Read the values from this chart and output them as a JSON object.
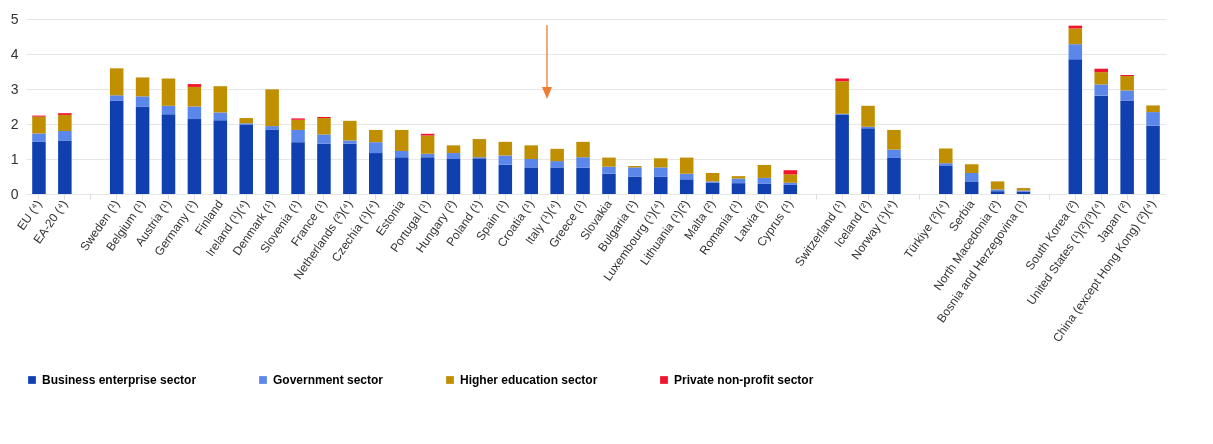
{
  "chart_data": {
    "type": "bar",
    "stacked": true,
    "legend": "bottom",
    "grid": "y",
    "ylim": [
      0,
      5
    ],
    "yticks": [
      0,
      1,
      2,
      3,
      4,
      5
    ],
    "categories": [
      "EU (⁴)",
      "EA-20 (⁴)",
      null,
      "Sweden (¹)",
      "Belgium (¹)",
      "Austria (¹)",
      "Germany (¹)",
      "Finland",
      "Ireland (¹)(⁴)",
      "Denmark (¹)",
      "Slovenia (¹)",
      "France (¹)",
      "Netherlands (²)(⁴)",
      "Czechia (¹)(⁴)",
      "Estonia",
      "Portugal (¹)",
      "Hungary (²)",
      "Poland (¹)",
      "Spain (¹)",
      "Croatia (¹)",
      "Italy (¹)(⁴)",
      "Greece (¹)",
      "Slovakia",
      "Bulgaria (¹)",
      "Luxembourg (¹)(⁴)",
      "Lithuania (¹)(²)",
      "Malta (²)",
      "Romania (¹)",
      "Latvia (²)",
      "Cyprus (¹)",
      null,
      "Switzerland (¹)",
      "Iceland (²)",
      "Norway (¹)(⁴)",
      null,
      "Türkiye (²)(⁴)",
      "Serbia",
      "North Macedonia (²)",
      "Bosnia and Herzegovina (¹)",
      null,
      "South Korea (²)",
      "United States (¹)(²)(³)(⁴)",
      "Japan (²)",
      "China (except Hong Kong) (²)(⁴)"
    ],
    "series": [
      {
        "name": "Business enterprise sector",
        "color": "#1040b0",
        "values": [
          1.49,
          1.53,
          null,
          2.67,
          2.5,
          2.28,
          2.14,
          2.11,
          1.97,
          1.84,
          1.48,
          1.44,
          1.44,
          1.17,
          1.05,
          1.05,
          1.0,
          1.02,
          0.84,
          0.76,
          0.76,
          0.75,
          0.58,
          0.5,
          0.49,
          0.42,
          0.32,
          0.31,
          0.29,
          0.26,
          null,
          2.26,
          1.88,
          1.03,
          null,
          0.8,
          0.36,
          0.08,
          0.07,
          null,
          3.85,
          2.81,
          2.67,
          1.95
        ]
      },
      {
        "name": "Government sector",
        "color": "#5b86ea",
        "values": [
          0.24,
          0.27,
          null,
          0.15,
          0.29,
          0.24,
          0.36,
          0.22,
          0.05,
          0.1,
          0.35,
          0.26,
          0.09,
          0.31,
          0.18,
          0.1,
          0.17,
          0.03,
          0.26,
          0.24,
          0.18,
          0.3,
          0.2,
          0.26,
          0.27,
          0.16,
          0.04,
          0.13,
          0.17,
          0.06,
          null,
          0.03,
          0.04,
          0.24,
          null,
          0.08,
          0.24,
          0.05,
          0.03,
          null,
          0.43,
          0.32,
          0.29,
          0.39
        ]
      },
      {
        "name": "Higher education sector",
        "color": "#bf8f00",
        "values": [
          0.48,
          0.46,
          null,
          0.77,
          0.54,
          0.78,
          0.56,
          0.75,
          0.15,
          1.05,
          0.29,
          0.47,
          0.56,
          0.35,
          0.6,
          0.52,
          0.22,
          0.52,
          0.39,
          0.39,
          0.35,
          0.44,
          0.26,
          0.04,
          0.26,
          0.46,
          0.24,
          0.07,
          0.37,
          0.24,
          null,
          0.93,
          0.6,
          0.56,
          null,
          0.42,
          0.25,
          0.23,
          0.07,
          null,
          0.45,
          0.35,
          0.41,
          0.19
        ]
      },
      {
        "name": "Private non-profit sector",
        "color": "#f0142d",
        "values": [
          0.03,
          0.05,
          null,
          null,
          null,
          null,
          0.08,
          null,
          null,
          null,
          0.04,
          0.03,
          null,
          null,
          null,
          0.05,
          null,
          null,
          null,
          null,
          null,
          null,
          null,
          null,
          null,
          null,
          null,
          null,
          null,
          0.12,
          null,
          0.08,
          null,
          null,
          null,
          null,
          null,
          null,
          null,
          null,
          0.08,
          0.1,
          0.03,
          null
        ]
      }
    ]
  }
}
